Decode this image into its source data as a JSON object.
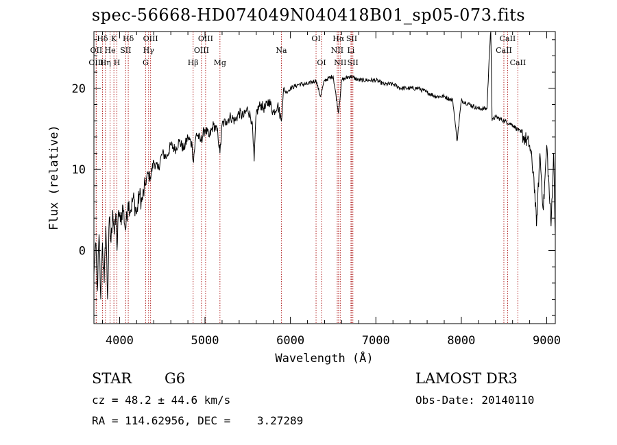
{
  "chart_data": {
    "type": "line",
    "title": "spec-56668-HD074049N040418B01_sp05-073.fits",
    "xlabel": "Wavelength (Å)",
    "ylabel": "Flux (relative)",
    "xlim": [
      3700,
      9100
    ],
    "ylim": [
      -9,
      27
    ],
    "xticks": [
      4000,
      5000,
      6000,
      7000,
      8000,
      9000
    ],
    "yticks": [
      0,
      10,
      20
    ],
    "series": [
      {
        "name": "spectrum",
        "points": [
          [
            3700,
            -3
          ],
          [
            3720,
            1
          ],
          [
            3740,
            -5
          ],
          [
            3760,
            2
          ],
          [
            3780,
            -6
          ],
          [
            3800,
            1
          ],
          [
            3820,
            -4
          ],
          [
            3840,
            3
          ],
          [
            3860,
            -6
          ],
          [
            3880,
            4
          ],
          [
            3900,
            1
          ],
          [
            3920,
            5
          ],
          [
            3940,
            2
          ],
          [
            3960,
            4.5
          ],
          [
            3970,
            0
          ],
          [
            3990,
            5
          ],
          [
            4010,
            3.5
          ],
          [
            4040,
            5.5
          ],
          [
            4070,
            2.5
          ],
          [
            4100,
            6
          ],
          [
            4130,
            5
          ],
          [
            4160,
            6.5
          ],
          [
            4200,
            4.5
          ],
          [
            4230,
            7
          ],
          [
            4260,
            6
          ],
          [
            4300,
            8
          ],
          [
            4330,
            9.5
          ],
          [
            4360,
            9
          ],
          [
            4400,
            11
          ],
          [
            4450,
            10
          ],
          [
            4500,
            12
          ],
          [
            4550,
            11.5
          ],
          [
            4600,
            13
          ],
          [
            4650,
            12.5
          ],
          [
            4700,
            13.5
          ],
          [
            4750,
            12.5
          ],
          [
            4800,
            14
          ],
          [
            4850,
            13
          ],
          [
            4861,
            11
          ],
          [
            4900,
            14.5
          ],
          [
            4950,
            13.5
          ],
          [
            5000,
            15
          ],
          [
            5050,
            14
          ],
          [
            5100,
            15.5
          ],
          [
            5150,
            14.5
          ],
          [
            5175,
            12
          ],
          [
            5200,
            15.5
          ],
          [
            5250,
            16
          ],
          [
            5300,
            16.5
          ],
          [
            5350,
            16
          ],
          [
            5400,
            17
          ],
          [
            5450,
            16.5
          ],
          [
            5500,
            17.5
          ],
          [
            5550,
            16
          ],
          [
            5575,
            11
          ],
          [
            5600,
            17
          ],
          [
            5650,
            18
          ],
          [
            5700,
            17.5
          ],
          [
            5750,
            18.5
          ],
          [
            5800,
            17
          ],
          [
            5850,
            18
          ],
          [
            5895,
            16
          ],
          [
            5920,
            20
          ],
          [
            5950,
            19.5
          ],
          [
            6000,
            20
          ],
          [
            6100,
            20.5
          ],
          [
            6200,
            20.5
          ],
          [
            6300,
            21
          ],
          [
            6350,
            19
          ],
          [
            6400,
            21
          ],
          [
            6500,
            21.5
          ],
          [
            6563,
            17
          ],
          [
            6600,
            21
          ],
          [
            6700,
            21.5
          ],
          [
            6800,
            21
          ],
          [
            6900,
            21
          ],
          [
            7000,
            21
          ],
          [
            7100,
            20.5
          ],
          [
            7200,
            20.5
          ],
          [
            7300,
            20
          ],
          [
            7400,
            20
          ],
          [
            7500,
            20
          ],
          [
            7600,
            19.5
          ],
          [
            7700,
            19
          ],
          [
            7800,
            19
          ],
          [
            7900,
            18.5
          ],
          [
            7950,
            13.5
          ],
          [
            8000,
            18.5
          ],
          [
            8100,
            18
          ],
          [
            8200,
            17.5
          ],
          [
            8300,
            17.5
          ],
          [
            8345,
            28
          ],
          [
            8360,
            16
          ],
          [
            8400,
            16.5
          ],
          [
            8500,
            16
          ],
          [
            8600,
            15.5
          ],
          [
            8700,
            14.5
          ],
          [
            8800,
            13
          ],
          [
            8850,
            9
          ],
          [
            8880,
            3
          ],
          [
            8920,
            12
          ],
          [
            8960,
            5
          ],
          [
            9000,
            13
          ],
          [
            9050,
            3
          ],
          [
            9080,
            12
          ],
          [
            9100,
            2
          ]
        ]
      }
    ],
    "lines": [
      {
        "label": "Hδ",
        "x": 3800,
        "row": 0
      },
      {
        "label": "OII",
        "x": 3727,
        "row": 1
      },
      {
        "label": "OIII",
        "x": 3727,
        "row": 2
      },
      {
        "label": "K",
        "x": 3934,
        "row": 0
      },
      {
        "label": "He",
        "x": 3889,
        "row": 1
      },
      {
        "label": "Hη",
        "x": 3835,
        "row": 2
      },
      {
        "label": "Hδ",
        "x": 4102,
        "row": 0
      },
      {
        "label": "SII",
        "x": 4072,
        "row": 1
      },
      {
        "label": "H",
        "x": 3969,
        "row": 2
      },
      {
        "label": "OIII",
        "x": 4363,
        "row": 0
      },
      {
        "label": "Hγ",
        "x": 4340,
        "row": 1
      },
      {
        "label": "G",
        "x": 4305,
        "row": 2
      },
      {
        "label": "Hβ",
        "x": 4861,
        "row": 2
      },
      {
        "label": "OIII",
        "x": 5007,
        "row": 0
      },
      {
        "label": "OIII",
        "x": 4959,
        "row": 1
      },
      {
        "label": "Mg",
        "x": 5175,
        "row": 2
      },
      {
        "label": "Na",
        "x": 5894,
        "row": 1
      },
      {
        "label": "OI",
        "x": 6300,
        "row": 0
      },
      {
        "label": "OI",
        "x": 6364,
        "row": 2
      },
      {
        "label": "Hα",
        "x": 6563,
        "row": 0
      },
      {
        "label": "NII",
        "x": 6548,
        "row": 1
      },
      {
        "label": "NII",
        "x": 6583,
        "row": 2
      },
      {
        "label": "SII",
        "x": 6717,
        "row": 0
      },
      {
        "label": "Li",
        "x": 6708,
        "row": 1
      },
      {
        "label": "SII",
        "x": 6731,
        "row": 2
      },
      {
        "label": "CaII",
        "x": 8542,
        "row": 0
      },
      {
        "label": "CaII",
        "x": 8498,
        "row": 1
      },
      {
        "label": "CaII",
        "x": 8662,
        "row": 2
      }
    ],
    "line_color": "#b22222",
    "series_color": "#000000"
  },
  "info": {
    "object_class": "STAR",
    "subclass": "G6",
    "survey": "LAMOST DR3",
    "redshift": "cz = 48.2 ± 44.6 km/s",
    "obs_date": "Obs-Date: 20140110",
    "coords": "RA = 114.62956, DEC =    3.27289"
  }
}
